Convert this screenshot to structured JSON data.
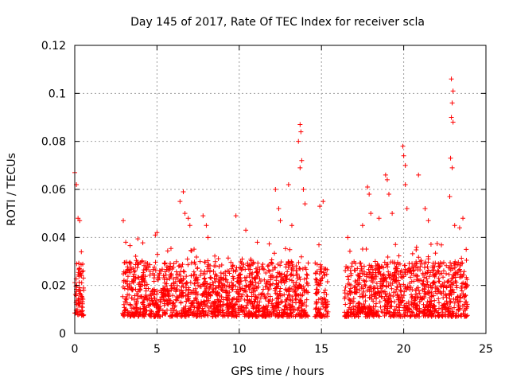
{
  "chart_data": {
    "type": "scatter",
    "title": "Day 145 of 2017, Rate Of TEC Index for receiver scla",
    "xlabel": "GPS time / hours",
    "ylabel": "ROTI / TECUs",
    "xlim": [
      0,
      25
    ],
    "ylim": [
      0,
      0.12
    ],
    "xticks": [
      0,
      5,
      10,
      15,
      20,
      25
    ],
    "yticks": [
      0,
      0.02,
      0.04,
      0.06,
      0.08,
      0.1,
      0.12
    ],
    "xtick_labels": [
      "0",
      "5",
      "10",
      "15",
      "20",
      "25"
    ],
    "ytick_labels": [
      "0",
      "0.02",
      "0.04",
      "0.06",
      "0.08",
      "0.1",
      "0.12"
    ],
    "grid": true,
    "marker": "+",
    "color": "#ff0000",
    "segments": [
      {
        "x_start": 0.0,
        "x_end": 0.55
      },
      {
        "x_start": 2.9,
        "x_end": 14.2
      },
      {
        "x_start": 14.6,
        "x_end": 15.4
      },
      {
        "x_start": 16.4,
        "x_end": 23.9
      }
    ],
    "baseline_range": [
      0.007,
      0.03
    ],
    "outlier_points": [
      {
        "x": 0.0,
        "y": 0.067
      },
      {
        "x": 0.1,
        "y": 0.062
      },
      {
        "x": 0.2,
        "y": 0.048
      },
      {
        "x": 0.3,
        "y": 0.047
      },
      {
        "x": 0.4,
        "y": 0.034
      },
      {
        "x": 2.95,
        "y": 0.047
      },
      {
        "x": 3.1,
        "y": 0.038
      },
      {
        "x": 4.9,
        "y": 0.041
      },
      {
        "x": 5.0,
        "y": 0.042
      },
      {
        "x": 6.4,
        "y": 0.055
      },
      {
        "x": 6.6,
        "y": 0.059
      },
      {
        "x": 6.7,
        "y": 0.05
      },
      {
        "x": 6.9,
        "y": 0.048
      },
      {
        "x": 7.0,
        "y": 0.045
      },
      {
        "x": 7.8,
        "y": 0.049
      },
      {
        "x": 8.0,
        "y": 0.045
      },
      {
        "x": 8.1,
        "y": 0.04
      },
      {
        "x": 9.8,
        "y": 0.049
      },
      {
        "x": 10.4,
        "y": 0.043
      },
      {
        "x": 11.1,
        "y": 0.038
      },
      {
        "x": 12.2,
        "y": 0.06
      },
      {
        "x": 12.4,
        "y": 0.052
      },
      {
        "x": 12.5,
        "y": 0.047
      },
      {
        "x": 13.0,
        "y": 0.062
      },
      {
        "x": 13.2,
        "y": 0.045
      },
      {
        "x": 13.6,
        "y": 0.08
      },
      {
        "x": 13.7,
        "y": 0.087
      },
      {
        "x": 13.75,
        "y": 0.084
      },
      {
        "x": 13.8,
        "y": 0.072
      },
      {
        "x": 13.7,
        "y": 0.069
      },
      {
        "x": 13.9,
        "y": 0.06
      },
      {
        "x": 14.0,
        "y": 0.054
      },
      {
        "x": 14.9,
        "y": 0.053
      },
      {
        "x": 15.1,
        "y": 0.055
      },
      {
        "x": 16.6,
        "y": 0.04
      },
      {
        "x": 17.5,
        "y": 0.045
      },
      {
        "x": 17.8,
        "y": 0.061
      },
      {
        "x": 17.9,
        "y": 0.058
      },
      {
        "x": 18.0,
        "y": 0.05
      },
      {
        "x": 18.5,
        "y": 0.048
      },
      {
        "x": 18.9,
        "y": 0.066
      },
      {
        "x": 19.0,
        "y": 0.064
      },
      {
        "x": 19.1,
        "y": 0.058
      },
      {
        "x": 19.3,
        "y": 0.05
      },
      {
        "x": 19.95,
        "y": 0.078
      },
      {
        "x": 20.0,
        "y": 0.074
      },
      {
        "x": 20.1,
        "y": 0.07
      },
      {
        "x": 20.1,
        "y": 0.062
      },
      {
        "x": 20.2,
        "y": 0.052
      },
      {
        "x": 20.9,
        "y": 0.066
      },
      {
        "x": 21.3,
        "y": 0.052
      },
      {
        "x": 21.5,
        "y": 0.047
      },
      {
        "x": 22.9,
        "y": 0.106
      },
      {
        "x": 23.0,
        "y": 0.101
      },
      {
        "x": 22.95,
        "y": 0.096
      },
      {
        "x": 22.9,
        "y": 0.09
      },
      {
        "x": 23.0,
        "y": 0.088
      },
      {
        "x": 22.85,
        "y": 0.073
      },
      {
        "x": 22.95,
        "y": 0.069
      },
      {
        "x": 22.8,
        "y": 0.057
      },
      {
        "x": 23.1,
        "y": 0.045
      },
      {
        "x": 23.4,
        "y": 0.044
      },
      {
        "x": 23.6,
        "y": 0.048
      },
      {
        "x": 23.8,
        "y": 0.035
      }
    ]
  }
}
